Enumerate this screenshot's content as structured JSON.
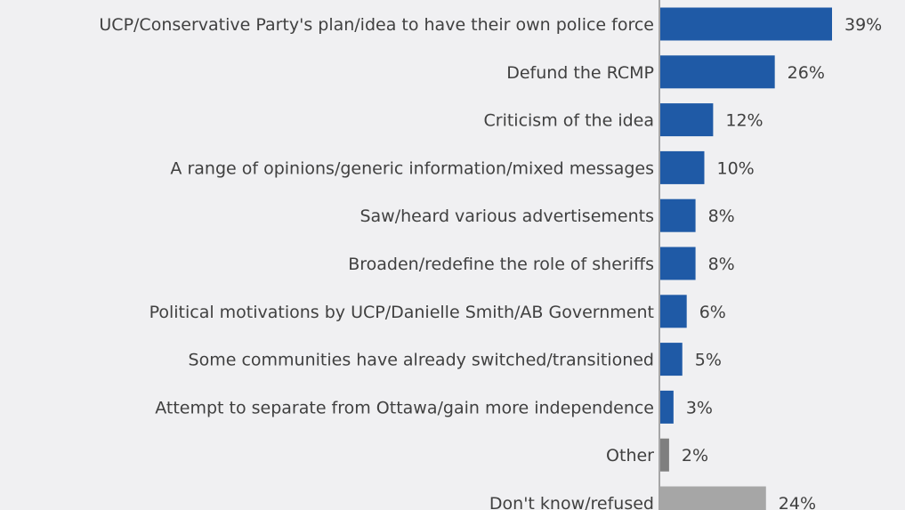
{
  "chart_data": {
    "type": "bar",
    "orientation": "horizontal",
    "categories": [
      "UCP/Conservative Party's plan/idea to have their own police force",
      "Defund the RCMP",
      "Criticism of the idea",
      "A range of opinions/generic information/mixed messages",
      "Saw/heard various advertisements",
      "Broaden/redefine the role of sheriffs",
      "Political motivations by UCP/Danielle Smith/AB Government",
      "Some communities have already switched/transitioned",
      "Attempt to separate from Ottawa/gain more independence",
      "Other",
      "Don't know/refused"
    ],
    "values": [
      39,
      26,
      12,
      10,
      8,
      8,
      6,
      5,
      3,
      2,
      24
    ],
    "value_labels": [
      "39%",
      "26%",
      "12%",
      "10%",
      "8%",
      "8%",
      "6%",
      "5%",
      "3%",
      "2%",
      "24%"
    ],
    "bar_colors": [
      "#1f5aa6",
      "#1f5aa6",
      "#1f5aa6",
      "#1f5aa6",
      "#1f5aa6",
      "#1f5aa6",
      "#1f5aa6",
      "#1f5aa6",
      "#1f5aa6",
      "#7f7f7f",
      "#a6a6a6"
    ],
    "axis_color": "#8c8c8c",
    "xlim": [
      0,
      39
    ],
    "grid": false,
    "legend": false
  }
}
